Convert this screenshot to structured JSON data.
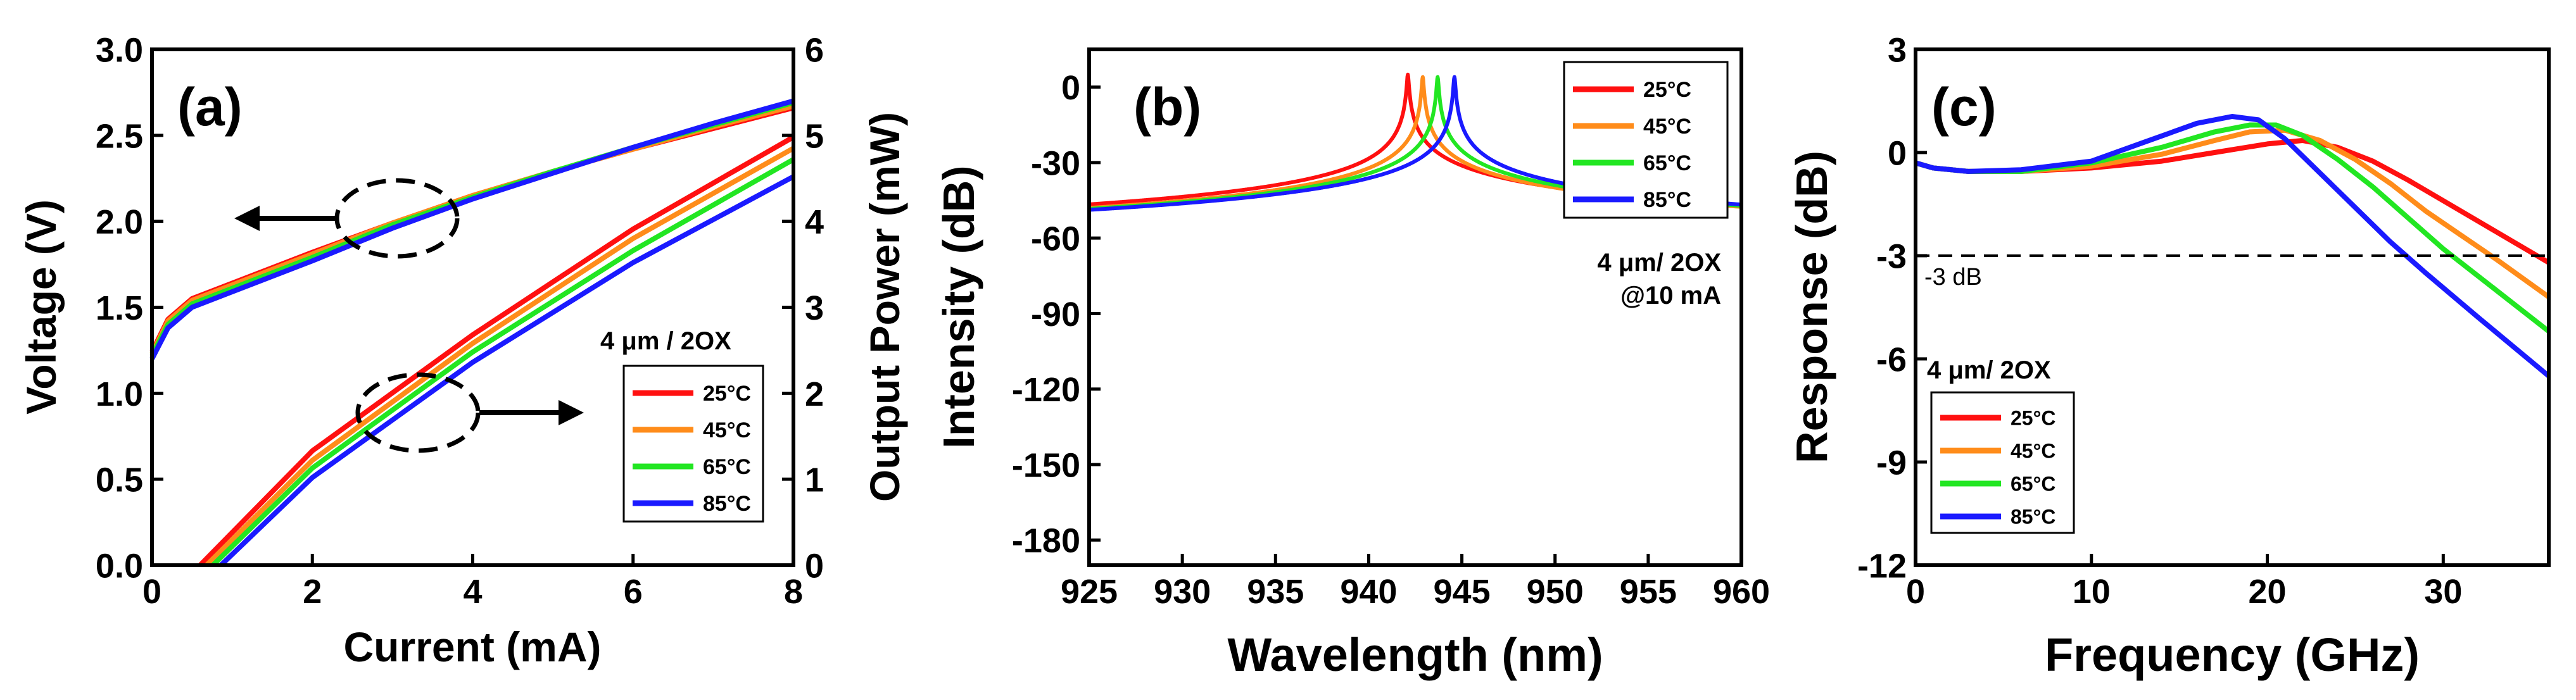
{
  "colors": {
    "25": "#ff1010",
    "45": "#ff8c1a",
    "65": "#22e622",
    "85": "#1a1aff",
    "axis": "#000000"
  },
  "chart_data": [
    {
      "panel_label": "(a)",
      "type": "line",
      "xlabel": "Current (mA)",
      "ylabel": "Voltage (V)",
      "y2label": "Output Power (mW)",
      "xlim": [
        0,
        8
      ],
      "ylim": [
        0,
        3.0
      ],
      "y2lim": [
        0,
        6
      ],
      "xticks": [
        "0",
        "2",
        "4",
        "6",
        "8"
      ],
      "yticks": [
        "0.0",
        "0.5",
        "1.0",
        "1.5",
        "2.0",
        "2.5",
        "3.0"
      ],
      "y2ticks": [
        "0",
        "1",
        "2",
        "3",
        "4",
        "5",
        "6"
      ],
      "annotation": "4 μm / 2OX",
      "legend_position": "lower-right",
      "grid": false,
      "series": [
        {
          "name": "25°C",
          "axis": "left",
          "x": [
            0,
            0.2,
            0.5,
            1,
            2,
            3,
            4,
            5,
            6,
            7,
            8
          ],
          "y": [
            1.24,
            1.43,
            1.55,
            1.64,
            1.82,
            1.99,
            2.15,
            2.29,
            2.42,
            2.54,
            2.66
          ]
        },
        {
          "name": "45°C",
          "axis": "left",
          "x": [
            0,
            0.2,
            0.5,
            1,
            2,
            3,
            4,
            5,
            6,
            7,
            8
          ],
          "y": [
            1.23,
            1.42,
            1.54,
            1.63,
            1.81,
            1.99,
            2.15,
            2.29,
            2.42,
            2.55,
            2.67
          ]
        },
        {
          "name": "65°C",
          "axis": "left",
          "x": [
            0,
            0.2,
            0.5,
            1,
            2,
            3,
            4,
            5,
            6,
            7,
            8
          ],
          "y": [
            1.22,
            1.4,
            1.52,
            1.61,
            1.79,
            1.98,
            2.14,
            2.29,
            2.43,
            2.56,
            2.69
          ]
        },
        {
          "name": "85°C",
          "axis": "left",
          "x": [
            0,
            0.2,
            0.5,
            1,
            2,
            3,
            4,
            5,
            6,
            7,
            8
          ],
          "y": [
            1.2,
            1.38,
            1.5,
            1.59,
            1.77,
            1.96,
            2.13,
            2.28,
            2.43,
            2.57,
            2.7
          ]
        },
        {
          "name": "25°C",
          "axis": "right",
          "x": [
            0.6,
            2,
            4,
            6,
            8
          ],
          "y": [
            0,
            1.33,
            2.68,
            3.91,
            4.98
          ]
        },
        {
          "name": "45°C",
          "axis": "right",
          "x": [
            0.68,
            2,
            4,
            6,
            8
          ],
          "y": [
            0,
            1.22,
            2.58,
            3.8,
            4.85
          ]
        },
        {
          "name": "65°C",
          "axis": "right",
          "x": [
            0.76,
            2,
            4,
            6,
            8
          ],
          "y": [
            0,
            1.13,
            2.48,
            3.66,
            4.72
          ]
        },
        {
          "name": "85°C",
          "axis": "right",
          "x": [
            0.86,
            2,
            4,
            6,
            8
          ],
          "y": [
            0,
            1.02,
            2.36,
            3.52,
            4.52
          ]
        }
      ]
    },
    {
      "panel_label": "(b)",
      "type": "line",
      "xlabel": "Wavelength (nm)",
      "ylabel": "Intensity (dB)",
      "xlim": [
        925,
        960
      ],
      "ylim": [
        -190,
        15
      ],
      "xticks": [
        "925",
        "930",
        "935",
        "940",
        "945",
        "950",
        "955",
        "960"
      ],
      "yticks": [
        "0",
        "-30",
        "-60",
        "-90",
        "-120",
        "-150",
        "-180"
      ],
      "annotation": [
        "4 μm/ 2OX",
        "@10 mA"
      ],
      "legend_position": "top-right",
      "grid": false,
      "series": [
        {
          "name": "25°C",
          "peak_nm": 942.1,
          "peak_db": 5
        },
        {
          "name": "45°C",
          "peak_nm": 942.9,
          "peak_db": 4
        },
        {
          "name": "65°C",
          "peak_nm": 943.7,
          "peak_db": 4
        },
        {
          "name": "85°C",
          "peak_nm": 944.6,
          "peak_db": 4
        }
      ]
    },
    {
      "panel_label": "(c)",
      "type": "line",
      "xlabel": "Frequency (GHz)",
      "ylabel": "Response (dB)",
      "xlim": [
        0,
        36
      ],
      "ylim": [
        -12,
        3
      ],
      "xticks": [
        "0",
        "10",
        "20",
        "30"
      ],
      "yticks": [
        "3",
        "0",
        "-3",
        "-6",
        "-9",
        "-12"
      ],
      "reference_line": {
        "y": -3,
        "label": "-3 dB"
      },
      "annotation": "4 μm/ 2OX",
      "legend_position": "lower-left",
      "grid": false,
      "series": [
        {
          "name": "25°C",
          "x": [
            0,
            1,
            3,
            6,
            10,
            14,
            17,
            20,
            22,
            24,
            26,
            28,
            30,
            32,
            34,
            36
          ],
          "y": [
            -0.3,
            -0.45,
            -0.55,
            -0.55,
            -0.45,
            -0.25,
            0.0,
            0.25,
            0.35,
            0.15,
            -0.25,
            -0.8,
            -1.4,
            -2.0,
            -2.6,
            -3.2
          ]
        },
        {
          "name": "45°C",
          "x": [
            0,
            1,
            3,
            6,
            10,
            14,
            17,
            19,
            21,
            23,
            25,
            27,
            29,
            31,
            33,
            36
          ],
          "y": [
            -0.3,
            -0.45,
            -0.55,
            -0.55,
            -0.4,
            -0.05,
            0.35,
            0.6,
            0.65,
            0.35,
            -0.2,
            -0.9,
            -1.7,
            -2.4,
            -3.1,
            -4.2
          ]
        },
        {
          "name": "65°C",
          "x": [
            0,
            1,
            3,
            6,
            10,
            14,
            17,
            19,
            20.5,
            22,
            24,
            26,
            28,
            30,
            33,
            36
          ],
          "y": [
            -0.3,
            -0.45,
            -0.55,
            -0.55,
            -0.3,
            0.15,
            0.6,
            0.8,
            0.8,
            0.5,
            -0.2,
            -1.0,
            -1.9,
            -2.8,
            -4.0,
            -5.2
          ]
        },
        {
          "name": "85°C",
          "x": [
            0,
            1,
            3,
            6,
            10,
            13,
            16,
            18,
            19.5,
            21,
            23,
            25,
            27,
            29,
            32,
            36
          ],
          "y": [
            -0.3,
            -0.45,
            -0.55,
            -0.5,
            -0.25,
            0.3,
            0.85,
            1.05,
            0.95,
            0.4,
            -0.6,
            -1.6,
            -2.6,
            -3.5,
            -4.8,
            -6.5
          ]
        }
      ]
    }
  ]
}
